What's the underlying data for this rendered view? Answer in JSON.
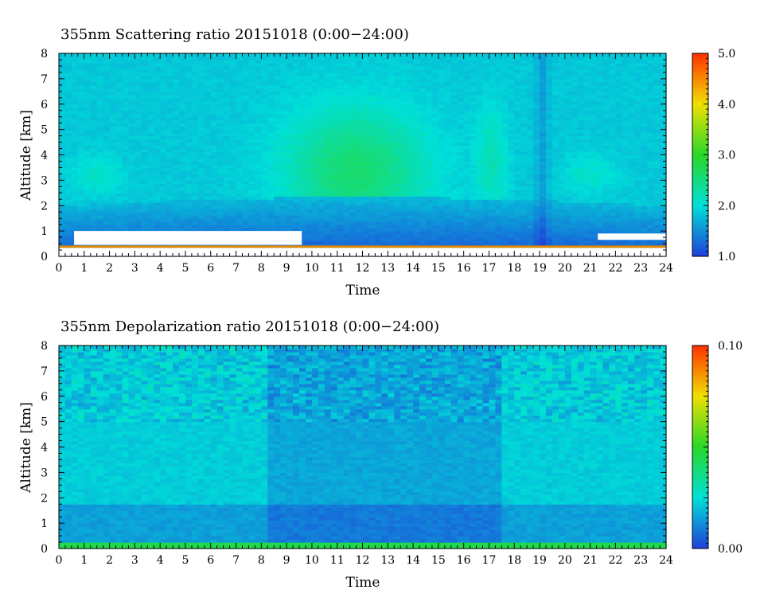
{
  "chart_data": [
    {
      "type": "heatmap",
      "title": "355nm Scattering ratio  20151018 (0:00−24:00)",
      "xlabel": "Time",
      "ylabel": "Altitude [km]",
      "xlim": [
        0,
        24
      ],
      "ylim": [
        0,
        8
      ],
      "x_ticks": [
        "0",
        "1",
        "2",
        "3",
        "4",
        "5",
        "6",
        "7",
        "8",
        "9",
        "10",
        "11",
        "12",
        "13",
        "14",
        "15",
        "16",
        "17",
        "18",
        "19",
        "20",
        "21",
        "22",
        "23",
        "24"
      ],
      "y_ticks": [
        "0",
        "1",
        "2",
        "3",
        "4",
        "5",
        "6",
        "7",
        "8"
      ],
      "colorbar": {
        "range": [
          1.0,
          5.0
        ],
        "tick_labels": [
          "1.0",
          "2.0",
          "3.0",
          "4.0",
          "5.0"
        ],
        "tick_values": [
          1.0,
          2.0,
          3.0,
          4.0,
          5.0
        ],
        "colors": [
          "#1f3fd9",
          "#00e0d8",
          "#28d828",
          "#f0e000",
          "#ff3000"
        ]
      },
      "features": {
        "background_value": 1.85,
        "bright_aerosol_layer": {
          "time_range": [
            9,
            14.5
          ],
          "altitude_range": [
            1.5,
            7
          ],
          "peak_value": 2.6
        },
        "weak_layers": [
          {
            "time_range": [
              0.5,
              2.5
            ],
            "altitude_range": [
              2.5,
              4
            ],
            "value": 2.1
          },
          {
            "time_range": [
              16.5,
              17.7
            ],
            "altitude_range": [
              1.5,
              6
            ],
            "value": 2.2
          },
          {
            "time_range": [
              20,
              22
            ],
            "altitude_range": [
              2.5,
              4
            ],
            "value": 2.1
          }
        ],
        "boundary_layer": {
          "altitude_range": [
            0.5,
            2.0
          ],
          "value": 1.4
        },
        "no_data_regions": [
          {
            "time_range": [
              0.6,
              9.6
            ],
            "altitude_range": [
              0.45,
              1.0
            ]
          },
          {
            "time_range": [
              21.3,
              24
            ],
            "altitude_range": [
              0.65,
              0.9
            ]
          }
        ],
        "ground_line_altitude": 0.38
      }
    },
    {
      "type": "heatmap",
      "title": "355nm Depolarization ratio  20151018 (0:00−24:00)",
      "xlabel": "Time",
      "ylabel": "Altitude [km]",
      "xlim": [
        0,
        24
      ],
      "ylim": [
        0,
        8
      ],
      "x_ticks": [
        "0",
        "1",
        "2",
        "3",
        "4",
        "5",
        "6",
        "7",
        "8",
        "9",
        "10",
        "11",
        "12",
        "13",
        "14",
        "15",
        "16",
        "17",
        "18",
        "19",
        "20",
        "21",
        "22",
        "23",
        "24"
      ],
      "y_ticks": [
        "0",
        "1",
        "2",
        "3",
        "4",
        "5",
        "6",
        "7",
        "8"
      ],
      "colorbar": {
        "range": [
          0.0,
          0.1
        ],
        "tick_labels": [
          "0.00",
          "0.10"
        ],
        "tick_values": [
          0.0,
          0.1
        ],
        "colors": [
          "#1f3fd9",
          "#00e0d8",
          "#28d828",
          "#f0e000",
          "#ff3000"
        ]
      },
      "features": {
        "background_value": 0.022,
        "lower_layer": {
          "altitude_range": [
            0.3,
            1.8
          ],
          "value": 0.015
        },
        "darker_period": {
          "time_range": [
            8.2,
            17.5
          ],
          "altitude_range": [
            0.3,
            8
          ],
          "value": 0.012
        },
        "surface_band": {
          "altitude_range": [
            0,
            0.2
          ],
          "value": 0.045
        }
      }
    }
  ]
}
